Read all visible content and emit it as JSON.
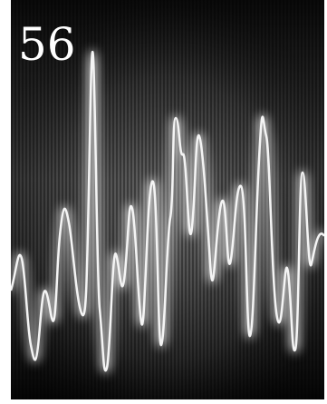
{
  "page_number": "56"
}
